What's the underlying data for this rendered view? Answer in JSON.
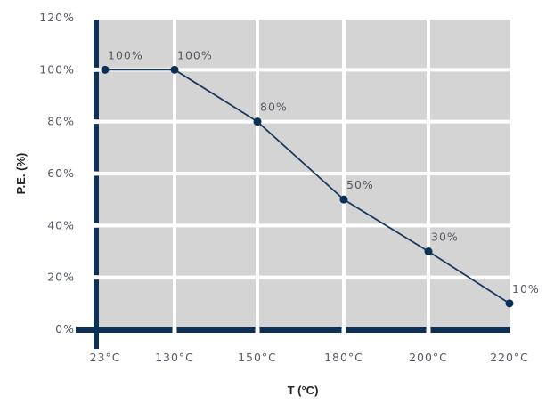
{
  "chart_data": {
    "type": "line",
    "title": "",
    "xlabel": "T (°C)",
    "ylabel": "P.E. (%)",
    "categories": [
      "23°C",
      "130°C",
      "150°C",
      "180°C",
      "200°C",
      "220°C"
    ],
    "series": [
      {
        "values": [
          100,
          100,
          80,
          50,
          30,
          10
        ]
      }
    ],
    "data_labels": [
      "100%",
      "100%",
      "80%",
      "50%",
      "30%",
      "10%"
    ],
    "y_ticks": [
      "0%",
      "20%",
      "40%",
      "60%",
      "80%",
      "100%",
      "120%"
    ],
    "ylim": [
      0,
      120
    ],
    "grid": true,
    "legend": "none",
    "colors": {
      "plot_background": "#d4d4d4",
      "grid": "#ffffff",
      "axis": "#0d3057",
      "line": "#1b3a5c",
      "marker": "#0d3057"
    }
  }
}
